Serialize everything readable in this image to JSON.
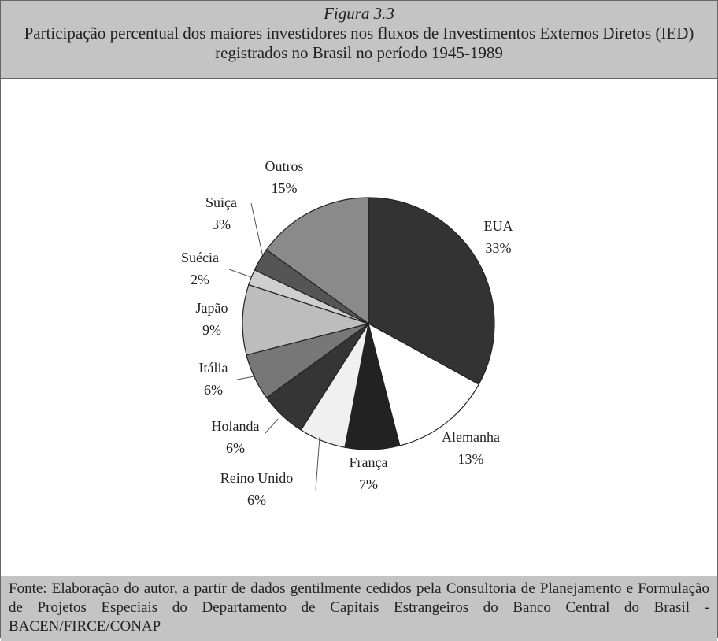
{
  "chart_data": {
    "type": "pie",
    "figure_label": "Figura 3.3",
    "title": "Participação percentual dos maiores investidores  nos fluxos de Investimentos Externos Diretos (IED) registrados no Brasil no período 1945-1989",
    "categories": [
      "EUA",
      "Alemanha",
      "França",
      "Reino Unido",
      "Holanda",
      "Itália",
      "Japão",
      "Suécia",
      "Suiça",
      "Outros"
    ],
    "values": [
      33,
      13,
      7,
      6,
      6,
      6,
      9,
      2,
      3,
      15
    ],
    "value_labels": [
      "33%",
      "13%",
      "7%",
      "6%",
      "6%",
      "6%",
      "9%",
      "2%",
      "3%",
      "15%"
    ],
    "colors": [
      "#333333",
      "#ffffff",
      "#222222",
      "#f0f0f0",
      "#353535",
      "#777777",
      "#bdbdbd",
      "#cfcfcf",
      "#555555",
      "#8a8a8a"
    ],
    "source": "Fonte: Elaboração do autor, a partir de dados gentilmente cedidos pela Consultoria de Planejamento e Formulação de Projetos Especiais do Departamento de Capitais Estrangeiros do Banco Central do Brasil - BACEN/FIRCE/CONAP"
  }
}
